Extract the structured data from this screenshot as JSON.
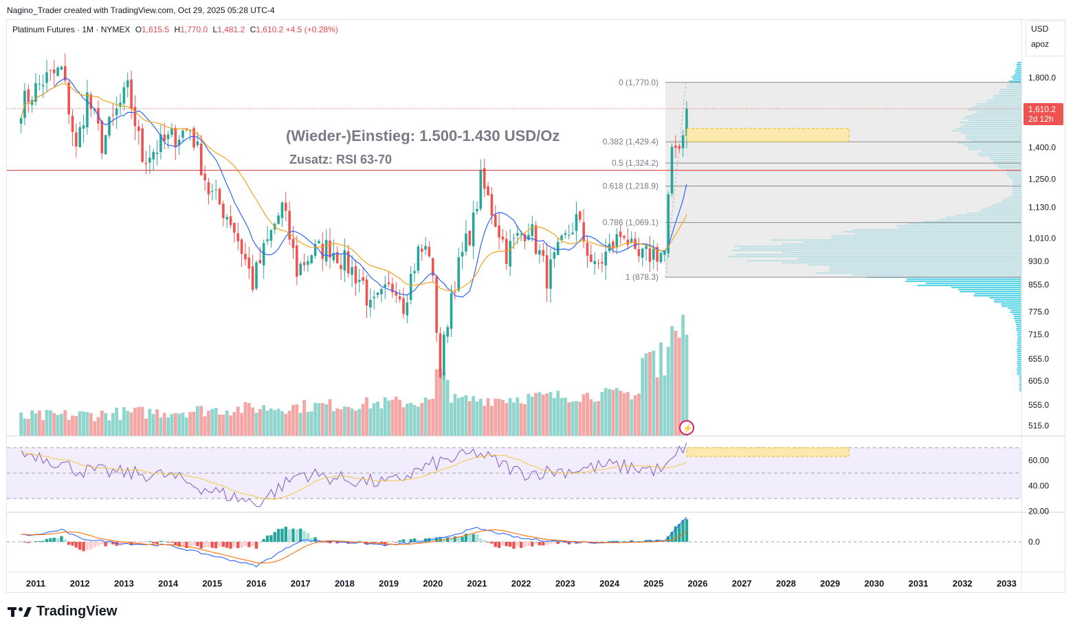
{
  "header": {
    "creator_text": "Nagino_Trader created with TradingView.com, Oct 29, 2025 05:28 UTC-4"
  },
  "legend": {
    "symbol": "Platinum Futures · 1M · NYMEX",
    "o_label": "O",
    "o_value": "1,615.5",
    "h_label": "H",
    "h_value": "1,770.0",
    "l_label": "L",
    "l_value": "1,481.2",
    "c_label": "C",
    "c_value": "1,610.2",
    "change": "+4.5 (+0.28%)"
  },
  "currency": {
    "unit": "USD",
    "scale": "apoz"
  },
  "footer": {
    "brand": "TradingView"
  },
  "colors": {
    "up": "#26a69a",
    "down": "#ef5350",
    "ma_fast": "#2962ff",
    "ma_slow": "#f7a21b",
    "rsi": "#7e57c2",
    "profile": "#22c4dd",
    "annotation": "#787b86"
  },
  "chart_data": {
    "type": "candlestick",
    "title": "Platinum Futures · 1M · NYMEX",
    "annotations": {
      "entry_text": "(Wieder-)Einstieg: 1.500-1.430 USD/Oz",
      "rsi_text": "Zusatz: RSI 63-70"
    },
    "price_axis": {
      "ticks": [
        1800,
        1400,
        1250,
        1130,
        1010,
        930,
        855,
        775,
        715,
        655,
        605,
        555,
        515
      ],
      "tick_labels": [
        "1,800.0",
        "1,400.0",
        "1,250.0",
        "1,130.0",
        "1,010.0",
        "930.0",
        "855.0",
        "775.0",
        "715.0",
        "655.0",
        "605.0",
        "555.0",
        "515.0"
      ],
      "current_price_label": "1,610.2",
      "countdown_label": "2d 12h",
      "scale": "log"
    },
    "x_axis": {
      "years": [
        "2011",
        "2012",
        "2013",
        "2014",
        "2015",
        "2016",
        "2017",
        "2018",
        "2019",
        "2020",
        "2021",
        "2022",
        "2023",
        "2024",
        "2025",
        "2026",
        "2027",
        "2028",
        "2029",
        "2030",
        "2031",
        "2032",
        "2033"
      ]
    },
    "horizontal_level": 1290,
    "entry_zone": [
      1430,
      1500
    ],
    "fib_levels": [
      {
        "ratio": "0",
        "price": 1770.0,
        "label": "0 (1,770.0)"
      },
      {
        "ratio": "0.382",
        "price": 1429.4,
        "label": "0.382 (1,429.4)"
      },
      {
        "ratio": "0.5",
        "price": 1324.2,
        "label": "0.5 (1,324.2)"
      },
      {
        "ratio": "0.618",
        "price": 1218.9,
        "label": "0.618 (1,218.9)"
      },
      {
        "ratio": "0.786",
        "price": 1069.1,
        "label": "0.786 (1,069.1)"
      },
      {
        "ratio": "1",
        "price": 878.3,
        "label": "1 (878.3)"
      }
    ],
    "price_path": [
      [
        "2010-09",
        1630
      ],
      [
        "2011-03",
        1780
      ],
      [
        "2011-08",
        1850
      ],
      [
        "2011-12",
        1380
      ],
      [
        "2012-03",
        1680
      ],
      [
        "2012-07",
        1420
      ],
      [
        "2013-02",
        1720
      ],
      [
        "2013-06",
        1350
      ],
      [
        "2014-02",
        1450
      ],
      [
        "2014-07",
        1500
      ],
      [
        "2014-12",
        1200
      ],
      [
        "2015-06",
        1080
      ],
      [
        "2015-12",
        860
      ],
      [
        "2016-08",
        1130
      ],
      [
        "2016-12",
        900
      ],
      [
        "2017-04",
        960
      ],
      [
        "2017-09",
        980
      ],
      [
        "2018-06",
        860
      ],
      [
        "2018-08",
        780
      ],
      [
        "2019-03",
        860
      ],
      [
        "2019-05",
        800
      ],
      [
        "2019-09",
        960
      ],
      [
        "2019-12",
        970
      ],
      [
        "2020-03",
        620
      ],
      [
        "2020-06",
        830
      ],
      [
        "2020-12",
        1070
      ],
      [
        "2021-02",
        1240
      ],
      [
        "2021-09",
        960
      ],
      [
        "2022-03",
        1060
      ],
      [
        "2022-08",
        880
      ],
      [
        "2023-04",
        1080
      ],
      [
        "2023-09",
        900
      ],
      [
        "2024-05",
        1040
      ],
      [
        "2024-08",
        930
      ],
      [
        "2025-01",
        960
      ],
      [
        "2025-04",
        960
      ],
      [
        "2025-06",
        1350
      ],
      [
        "2025-07",
        1400
      ],
      [
        "2025-09",
        1470
      ],
      [
        "2025-10",
        1610
      ]
    ],
    "volume_profile": "horizontal volume-by-price histogram, peak near 930-1010",
    "rsi": {
      "ticks": [
        60,
        40,
        20
      ],
      "tick_labels": [
        "60.00",
        "40.00",
        "20.00"
      ],
      "bands": [
        70,
        50,
        30
      ],
      "target_zone": [
        63,
        70
      ],
      "path": [
        [
          "2011",
          65
        ],
        [
          "2012",
          52
        ],
        [
          "2013",
          50
        ],
        [
          "2014",
          48
        ],
        [
          "2015",
          36
        ],
        [
          "2016",
          26
        ],
        [
          "2017",
          50
        ],
        [
          "2018",
          45
        ],
        [
          "2019",
          42
        ],
        [
          "2020",
          57
        ],
        [
          "2021",
          66
        ],
        [
          "2022",
          50
        ],
        [
          "2023",
          52
        ],
        [
          "2024",
          56
        ],
        [
          "2025-04",
          52
        ],
        [
          "2025-10",
          74
        ]
      ]
    },
    "macd": {
      "ticks": [
        0
      ],
      "tick_labels": [
        "0.0"
      ],
      "path": [
        [
          "2011",
          20
        ],
        [
          "2011-08",
          35
        ],
        [
          "2012",
          10
        ],
        [
          "2013",
          -5
        ],
        [
          "2014",
          -10
        ],
        [
          "2015",
          -40
        ],
        [
          "2016",
          -70
        ],
        [
          "2017",
          5
        ],
        [
          "2018",
          0
        ],
        [
          "2019",
          -10
        ],
        [
          "2020",
          5
        ],
        [
          "2021",
          40
        ],
        [
          "2022",
          10
        ],
        [
          "2023",
          0
        ],
        [
          "2024",
          -2
        ],
        [
          "2025-04",
          5
        ],
        [
          "2025-10",
          70
        ]
      ]
    }
  }
}
